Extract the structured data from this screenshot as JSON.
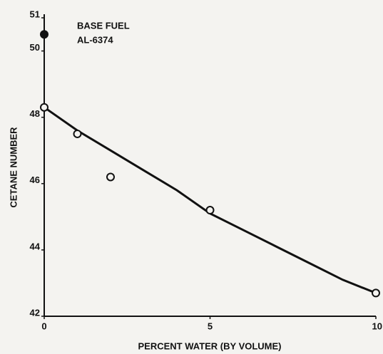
{
  "chart_data": {
    "type": "scatter",
    "annotation": [
      "BASE FUEL",
      "AL-6374"
    ],
    "x_label": "PERCENT WATER (BY VOLUME)",
    "y_label": "CETANE NUMBER",
    "xlim": [
      0,
      10
    ],
    "ylim": [
      42,
      51
    ],
    "xticks": [
      0,
      5,
      10
    ],
    "yticks": [
      42,
      44,
      46,
      48,
      50,
      51
    ],
    "series": [
      {
        "color": "#111111",
        "filled": true,
        "x": [
          0
        ],
        "values": [
          50.5
        ]
      },
      {
        "color": "#111111",
        "filled": false,
        "x": [
          0,
          1,
          2,
          5,
          10
        ],
        "values": [
          48.3,
          47.5,
          46.2,
          45.2,
          42.7
        ]
      }
    ],
    "fit": {
      "color": "#111111",
      "x": [
        0,
        1,
        2,
        3,
        4,
        5,
        6,
        7,
        8,
        9,
        10
      ],
      "values": [
        48.3,
        47.6,
        47.0,
        46.4,
        45.8,
        45.1,
        44.6,
        44.1,
        43.6,
        43.1,
        42.7
      ]
    }
  }
}
